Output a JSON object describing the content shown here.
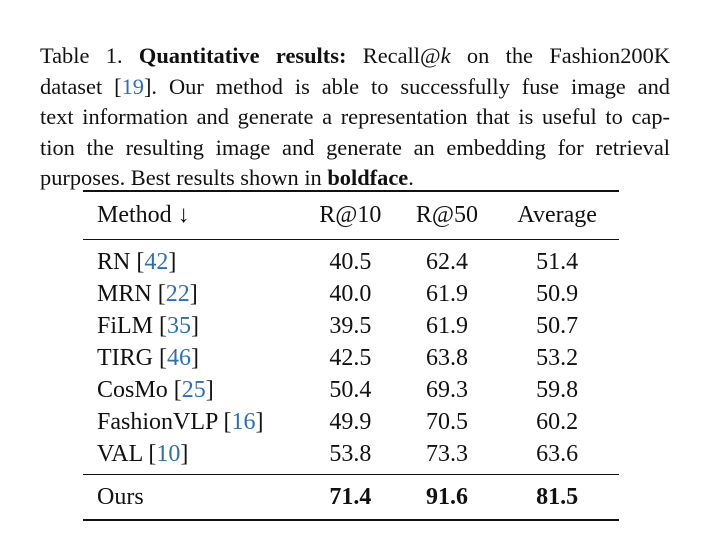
{
  "caption": {
    "line1": {
      "prefix": "Table 1.  ",
      "bold": "Quantitative results:",
      "mid": " Recall@",
      "k": "k",
      "suffix": " on the Fashion200K"
    },
    "line2": {
      "prefix": "dataset [",
      "cite": "19",
      "suffix": "].  Our method is able to successfully fuse image and"
    },
    "line3": "text information and generate a representation that is useful to cap-",
    "line4": "tion the resulting image and generate an embedding for retrieval",
    "line5": {
      "prefix": "purposes. Best results shown in ",
      "bold": "boldface",
      "suffix": "."
    }
  },
  "table": {
    "headers": [
      "Method ↓",
      "R@10",
      "R@50",
      "Average"
    ],
    "rows": [
      {
        "method": "RN",
        "cite": "42",
        "r10": "40.5",
        "r50": "62.4",
        "avg": "51.4"
      },
      {
        "method": "MRN",
        "cite": "22",
        "r10": "40.0",
        "r50": "61.9",
        "avg": "50.9"
      },
      {
        "method": "FiLM",
        "cite": "35",
        "r10": "39.5",
        "r50": "61.9",
        "avg": "50.7"
      },
      {
        "method": "TIRG",
        "cite": "46",
        "r10": "42.5",
        "r50": "63.8",
        "avg": "53.2"
      },
      {
        "method": "CosMo",
        "cite": "25",
        "r10": "50.4",
        "r50": "69.3",
        "avg": "59.8"
      },
      {
        "method": "FashionVLP",
        "cite": "16",
        "r10": "49.9",
        "r50": "70.5",
        "avg": "60.2"
      },
      {
        "method": "VAL",
        "cite": "10",
        "r10": "53.8",
        "r50": "73.3",
        "avg": "63.6"
      }
    ],
    "ours": {
      "method": "Ours",
      "r10": "71.4",
      "r50": "91.6",
      "avg": "81.5"
    }
  }
}
